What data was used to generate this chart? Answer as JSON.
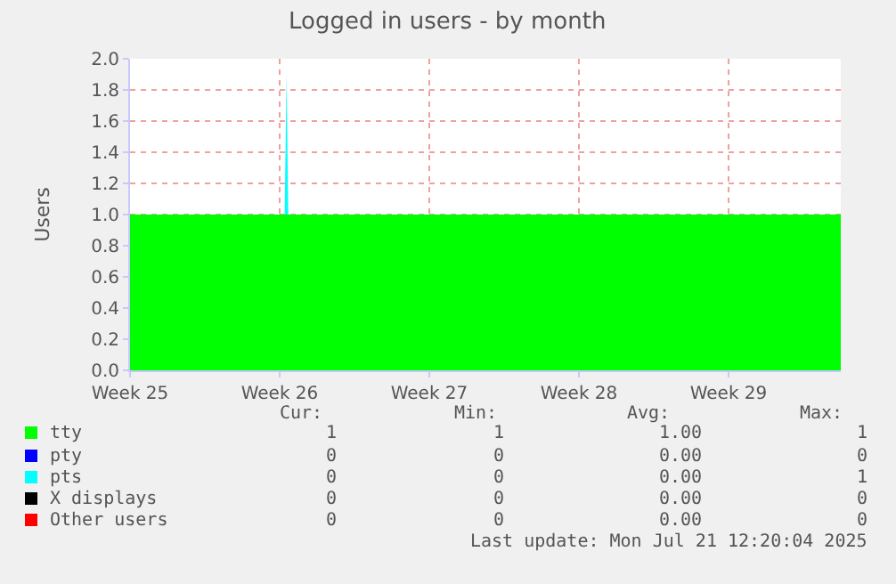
{
  "chart_data": {
    "type": "area",
    "stacked": true,
    "title": "Logged in users - by month",
    "ylabel": "Users",
    "x": [
      "2025-06-18T06:20",
      "2025-06-25T12:00",
      "2025-06-25T14:00",
      "2025-06-25T16:00",
      "2025-07-21T12:20"
    ],
    "series": [
      {
        "name": "tty",
        "color": "#00ff00",
        "values": [
          1,
          1,
          1,
          1,
          1
        ]
      },
      {
        "name": "pty",
        "color": "#0000ff",
        "values": [
          null,
          null,
          null,
          null,
          null
        ]
      },
      {
        "name": "pts",
        "color": "#00ffff",
        "values": [
          0,
          0,
          0.9,
          0,
          0
        ]
      },
      {
        "name": "X displays",
        "color": "#000000",
        "values": [
          null,
          null,
          null,
          null,
          null
        ]
      },
      {
        "name": "Other users",
        "color": "#ff0000",
        "values": [
          null,
          null,
          null,
          null,
          null
        ]
      }
    ],
    "xlim": [
      "2025-06-18T06:20",
      "2025-07-21T12:20"
    ],
    "xticks": [
      {
        "value": "2025-06-18T06:20",
        "label": "Week 25"
      },
      {
        "value": "2025-06-25T06:20",
        "label": "Week 26"
      },
      {
        "value": "2025-07-02T06:20",
        "label": "Week 27"
      },
      {
        "value": "2025-07-09T06:20",
        "label": "Week 28"
      },
      {
        "value": "2025-07-16T06:20",
        "label": "Week 29"
      }
    ],
    "ylim": [
      0,
      2
    ],
    "yticks": [
      {
        "value": 0,
        "label": "0.0"
      },
      0.2,
      0.4,
      0.6,
      0.8,
      {
        "value": 1,
        "label": "1.0"
      },
      1.2,
      1.4,
      1.6,
      1.8,
      {
        "value": 2,
        "label": "2.0"
      }
    ],
    "grid": true,
    "legend": "bottom",
    "annotations": [
      "Cur:",
      "Min:",
      "Avg:",
      "Max:",
      "1",
      "1",
      "1.00",
      "1",
      "0",
      "0",
      "0.00",
      "0",
      "0",
      "0",
      "0.00",
      "1",
      "0",
      "0",
      "0.00",
      "0",
      "0",
      "0",
      "0.00",
      "0",
      "Last update: Mon Jul 21 12:20:04 2025"
    ]
  }
}
